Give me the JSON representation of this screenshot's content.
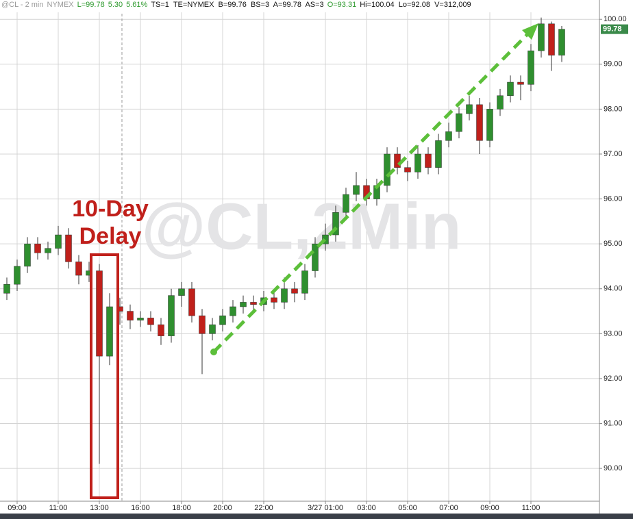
{
  "header": {
    "symbol": "@CL - 2 min",
    "exchange": "NYMEX",
    "last": "L=99.78",
    "change": "5.30",
    "pct": "5.61%",
    "quote": "TS=1  TE=NYMEX  B=99.76  BS=3  A=99.78  AS=3",
    "open": "O=93.31",
    "range": "Hi=100.04  Lo=92.08  V=312,009"
  },
  "chart_data": {
    "type": "candlestick",
    "watermark": "@CL,2Min",
    "annotation": [
      "10-Day",
      "Delay"
    ],
    "up_color": "#2f8f2f",
    "down_color": "#c0201b",
    "grid": true,
    "categories": [
      null,
      "09:00",
      null,
      null,
      null,
      "11:00",
      null,
      null,
      null,
      "13:00",
      null,
      null,
      null,
      "16:00",
      null,
      null,
      null,
      "18:00",
      null,
      null,
      null,
      "20:00",
      null,
      null,
      null,
      "22:00",
      null,
      null,
      null,
      null,
      null,
      "3/27 01:00",
      null,
      null,
      null,
      "03:00",
      null,
      null,
      null,
      "05:00",
      null,
      null,
      null,
      "07:00",
      null,
      null,
      null,
      "09:00",
      null,
      null,
      null,
      "11:00",
      null,
      null,
      null
    ],
    "series": [
      {
        "name": "@CL",
        "open": [
          93.9,
          94.1,
          94.5,
          95.0,
          94.8,
          94.9,
          95.2,
          94.6,
          94.3,
          94.4,
          92.5,
          93.6,
          93.5,
          93.3,
          93.35,
          93.2,
          92.95,
          93.85,
          94.0,
          93.4,
          93.0,
          93.2,
          93.4,
          93.6,
          93.7,
          93.65,
          93.8,
          93.7,
          94.0,
          93.9,
          94.4,
          95.0,
          95.2,
          95.7,
          96.1,
          96.3,
          96.0,
          96.3,
          97.0,
          96.7,
          96.6,
          97.0,
          96.7,
          97.3,
          97.5,
          97.9,
          98.1,
          97.3,
          98.0,
          98.3,
          98.6,
          98.55,
          99.3,
          99.9,
          99.2
        ],
        "high": [
          94.25,
          94.65,
          95.15,
          95.15,
          95.05,
          95.4,
          95.35,
          94.75,
          94.6,
          94.55,
          93.9,
          93.8,
          93.65,
          93.5,
          93.5,
          93.35,
          94.0,
          94.15,
          94.15,
          93.55,
          93.35,
          93.55,
          93.75,
          93.85,
          93.85,
          93.95,
          93.95,
          94.25,
          94.15,
          94.55,
          95.15,
          95.45,
          95.85,
          96.25,
          96.6,
          96.45,
          96.45,
          97.15,
          97.15,
          96.85,
          97.2,
          97.15,
          97.45,
          97.7,
          98.05,
          98.3,
          98.25,
          98.15,
          98.45,
          98.75,
          98.75,
          99.45,
          100.04,
          99.95,
          99.85
        ],
        "low": [
          93.75,
          93.95,
          94.35,
          94.65,
          94.65,
          94.75,
          94.45,
          94.1,
          94.15,
          90.1,
          92.3,
          93.2,
          93.1,
          93.15,
          93.05,
          92.75,
          92.8,
          93.6,
          93.25,
          92.1,
          92.85,
          93.05,
          93.25,
          93.45,
          93.5,
          93.5,
          93.55,
          93.55,
          93.7,
          93.75,
          94.25,
          94.85,
          95.05,
          95.55,
          95.95,
          95.85,
          95.85,
          96.15,
          96.55,
          96.4,
          96.45,
          96.55,
          96.55,
          97.15,
          97.35,
          97.75,
          97.0,
          97.15,
          97.85,
          98.15,
          98.2,
          98.4,
          99.15,
          98.85,
          99.05
        ],
        "close": [
          94.1,
          94.5,
          95.0,
          94.8,
          94.9,
          95.2,
          94.6,
          94.3,
          94.4,
          92.5,
          93.6,
          93.5,
          93.3,
          93.35,
          93.2,
          92.95,
          93.85,
          94.0,
          93.4,
          93.0,
          93.2,
          93.4,
          93.6,
          93.7,
          93.65,
          93.8,
          93.7,
          94.0,
          93.9,
          94.4,
          95.0,
          95.2,
          95.7,
          96.1,
          96.3,
          96.0,
          96.3,
          97.0,
          96.7,
          96.6,
          97.0,
          96.7,
          97.3,
          97.5,
          97.9,
          98.1,
          97.3,
          98.0,
          98.3,
          98.6,
          98.55,
          99.3,
          99.9,
          99.2,
          99.78
        ]
      }
    ],
    "ylim": [
      89.27,
      100.43
    ],
    "yticks": [
      {
        "value": 90,
        "label": "90.00"
      },
      {
        "value": 91,
        "label": "91.00"
      },
      {
        "value": 92,
        "label": "92.00"
      },
      {
        "value": 93,
        "label": "93.00"
      },
      {
        "value": 94,
        "label": "94.00"
      },
      {
        "value": 95,
        "label": "95.00"
      },
      {
        "value": 96,
        "label": "96.00"
      },
      {
        "value": 97,
        "label": "97.00"
      },
      {
        "value": 98,
        "label": "98.00"
      },
      {
        "value": 99,
        "label": "99.00"
      },
      {
        "value": 100,
        "label": "100.00"
      }
    ]
  }
}
